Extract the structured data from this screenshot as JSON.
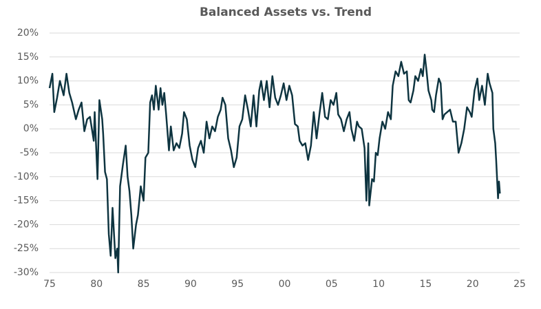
{
  "chart_data": {
    "type": "line",
    "title": "Balanced Assets vs. Trend",
    "x": [
      1975.0,
      1975.3,
      1975.5,
      1975.8,
      1976.1,
      1976.5,
      1976.8,
      1977.1,
      1977.4,
      1977.8,
      1978.1,
      1978.4,
      1978.7,
      1979.0,
      1979.3,
      1979.5,
      1979.7,
      1979.8,
      1980.1,
      1980.3,
      1980.6,
      1980.7,
      1980.9,
      1981.1,
      1981.3,
      1981.5,
      1981.7,
      1982.0,
      1982.2,
      1982.3,
      1982.5,
      1982.8,
      1983.1,
      1983.3,
      1983.5,
      1983.7,
      1983.9,
      1984.2,
      1984.4,
      1984.7,
      1985.0,
      1985.2,
      1985.5,
      1985.7,
      1985.9,
      1986.1,
      1986.3,
      1986.6,
      1986.8,
      1987.0,
      1987.2,
      1987.4,
      1987.7,
      1987.9,
      1988.2,
      1988.5,
      1988.8,
      1989.1,
      1989.3,
      1989.6,
      1989.9,
      1990.2,
      1990.5,
      1990.8,
      1991.1,
      1991.4,
      1991.7,
      1992.0,
      1992.3,
      1992.6,
      1992.9,
      1993.2,
      1993.4,
      1993.7,
      1994.0,
      1994.3,
      1994.6,
      1994.9,
      1995.2,
      1995.5,
      1995.8,
      1996.1,
      1996.4,
      1996.7,
      1997.0,
      1997.3,
      1997.5,
      1997.8,
      1998.1,
      1998.4,
      1998.7,
      1999.0,
      1999.3,
      1999.6,
      1999.9,
      2000.2,
      2000.5,
      2000.8,
      2001.1,
      2001.4,
      2001.6,
      2001.9,
      2002.2,
      2002.5,
      2002.8,
      2003.1,
      2003.4,
      2003.7,
      2004.0,
      2004.3,
      2004.6,
      2004.9,
      2005.2,
      2005.5,
      2005.7,
      2006.0,
      2006.3,
      2006.6,
      2006.9,
      2007.1,
      2007.4,
      2007.7,
      2007.9,
      2008.2,
      2008.5,
      2008.7,
      2008.9,
      2009.0,
      2009.3,
      2009.5,
      2009.7,
      2009.9,
      2010.1,
      2010.4,
      2010.7,
      2011.0,
      2011.3,
      2011.5,
      2011.8,
      2012.1,
      2012.4,
      2012.7,
      2013.0,
      2013.2,
      2013.4,
      2013.7,
      2013.9,
      2014.2,
      2014.5,
      2014.7,
      2014.9,
      2015.1,
      2015.3,
      2015.6,
      2015.7,
      2015.9,
      2016.1,
      2016.4,
      2016.6,
      2016.8,
      2017.0,
      2017.3,
      2017.6,
      2017.9,
      2018.2,
      2018.5,
      2018.8,
      2019.1,
      2019.4,
      2019.7,
      2019.9,
      2020.2,
      2020.5,
      2020.7,
      2021.0,
      2021.3,
      2021.6,
      2021.8,
      2022.1,
      2022.2,
      2022.4,
      2022.5,
      2022.7,
      2022.8,
      2022.9
    ],
    "series": [
      {
        "name": "Balanced Assets vs. Trend",
        "color": "#0e3440",
        "values": [
          8.5,
          11.5,
          3.5,
          6.5,
          10,
          7,
          11.5,
          7.5,
          5.5,
          2,
          4,
          5.5,
          -0.5,
          2,
          2.5,
          0,
          -2.5,
          3.5,
          -10.5,
          6,
          2,
          -1,
          -9,
          -10.5,
          -22,
          -26.5,
          -16.5,
          -27,
          -25,
          -30,
          -12,
          -7.5,
          -3.5,
          -10,
          -13,
          -18,
          -25,
          -20,
          -18,
          -12,
          -15,
          -6,
          -5,
          5.5,
          7,
          4,
          9,
          4,
          8.5,
          5,
          7.5,
          3,
          -4.5,
          0.5,
          -4.5,
          -3,
          -4,
          -1,
          3.5,
          2,
          -3.5,
          -6.5,
          -8,
          -4,
          -2.5,
          -5,
          1.5,
          -2,
          0.5,
          -0.5,
          2.5,
          4,
          6.5,
          5,
          -2,
          -4.5,
          -8,
          -6,
          0.5,
          2,
          7,
          4,
          0.5,
          7,
          0.5,
          8,
          10,
          6,
          10,
          4.5,
          11,
          6.5,
          5,
          7,
          9.5,
          6,
          9,
          7,
          1,
          0.5,
          -2.5,
          -3.5,
          -3,
          -6.5,
          -3.5,
          3.5,
          -2,
          3,
          7.5,
          2.5,
          2,
          6,
          5,
          7.5,
          3,
          2,
          -0.5,
          2,
          3.5,
          0,
          -2.5,
          1.5,
          0.5,
          0,
          -4,
          -15,
          -3,
          -16,
          -10.5,
          -11,
          -5,
          -5.5,
          -2,
          1.5,
          0,
          3.5,
          2,
          9,
          12,
          11,
          14,
          11.5,
          12,
          6,
          5.5,
          8,
          11,
          10,
          12.5,
          11,
          15.5,
          12,
          8,
          6,
          4,
          3.5,
          7,
          10.5,
          9.5,
          2,
          3,
          3.5,
          4,
          1.5,
          1.5,
          -5,
          -3,
          0,
          4.5,
          3.5,
          2.5,
          8,
          10.5,
          6,
          9,
          5,
          11.5,
          9.5,
          7.5,
          0,
          -3,
          -6.5,
          -14.5,
          -11,
          -13.5
        ]
      }
    ],
    "xlim": [
      1975,
      2025
    ],
    "xticks": [
      {
        "value": 1975,
        "label": "75"
      },
      {
        "value": 1980,
        "label": "80"
      },
      {
        "value": 1985,
        "label": "85"
      },
      {
        "value": 1990,
        "label": "90"
      },
      {
        "value": 1995,
        "label": "95"
      },
      {
        "value": 2000,
        "label": "00"
      },
      {
        "value": 2005,
        "label": "05"
      },
      {
        "value": 2010,
        "label": "10"
      },
      {
        "value": 2015,
        "label": "15"
      },
      {
        "value": 2020,
        "label": "20"
      },
      {
        "value": 2025,
        "label": "25"
      }
    ],
    "ylim": [
      -30,
      20
    ],
    "yticks": [
      {
        "value": -30,
        "label": "-30%"
      },
      {
        "value": -25,
        "label": "-25%"
      },
      {
        "value": -20,
        "label": "-20%"
      },
      {
        "value": -15,
        "label": "-15%"
      },
      {
        "value": -10,
        "label": "-10%"
      },
      {
        "value": -5,
        "label": "-5%"
      },
      {
        "value": 0,
        "label": "0%"
      },
      {
        "value": 5,
        "label": "5%"
      },
      {
        "value": 10,
        "label": "10%"
      },
      {
        "value": 15,
        "label": "15%"
      },
      {
        "value": 20,
        "label": "20%"
      }
    ],
    "grid": true
  }
}
